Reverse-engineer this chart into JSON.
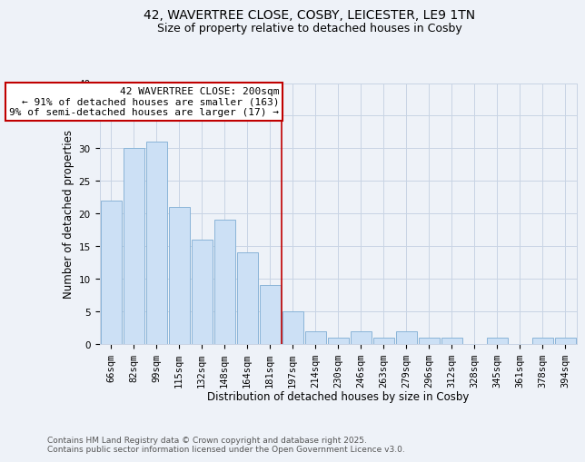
{
  "title_line1": "42, WAVERTREE CLOSE, COSBY, LEICESTER, LE9 1TN",
  "title_line2": "Size of property relative to detached houses in Cosby",
  "xlabel": "Distribution of detached houses by size in Cosby",
  "ylabel": "Number of detached properties",
  "categories": [
    "66sqm",
    "82sqm",
    "99sqm",
    "115sqm",
    "132sqm",
    "148sqm",
    "164sqm",
    "181sqm",
    "197sqm",
    "214sqm",
    "230sqm",
    "246sqm",
    "263sqm",
    "279sqm",
    "296sqm",
    "312sqm",
    "328sqm",
    "345sqm",
    "361sqm",
    "378sqm",
    "394sqm"
  ],
  "values": [
    22,
    30,
    31,
    21,
    16,
    19,
    14,
    9,
    5,
    2,
    1,
    2,
    1,
    2,
    1,
    1,
    0,
    1,
    0,
    1,
    1
  ],
  "bar_color": "#cce0f5",
  "bar_edge_color": "#8ab4d8",
  "annotation_text_line1": "42 WAVERTREE CLOSE: 200sqm",
  "annotation_text_line2": "← 91% of detached houses are smaller (163)",
  "annotation_text_line3": "9% of semi-detached houses are larger (17) →",
  "annotation_box_color": "#ffffff",
  "annotation_box_edge_color": "#c00000",
  "vline_color": "#c00000",
  "grid_color": "#c8d4e4",
  "background_color": "#eef2f8",
  "footer_text": "Contains HM Land Registry data © Crown copyright and database right 2025.\nContains public sector information licensed under the Open Government Licence v3.0.",
  "ylim": [
    0,
    40
  ],
  "yticks": [
    0,
    5,
    10,
    15,
    20,
    25,
    30,
    35,
    40
  ],
  "title_fontsize": 10,
  "subtitle_fontsize": 9,
  "axis_label_fontsize": 8.5,
  "tick_fontsize": 7.5,
  "annotation_fontsize": 8,
  "footer_fontsize": 6.5,
  "vline_x_index": 7.5
}
